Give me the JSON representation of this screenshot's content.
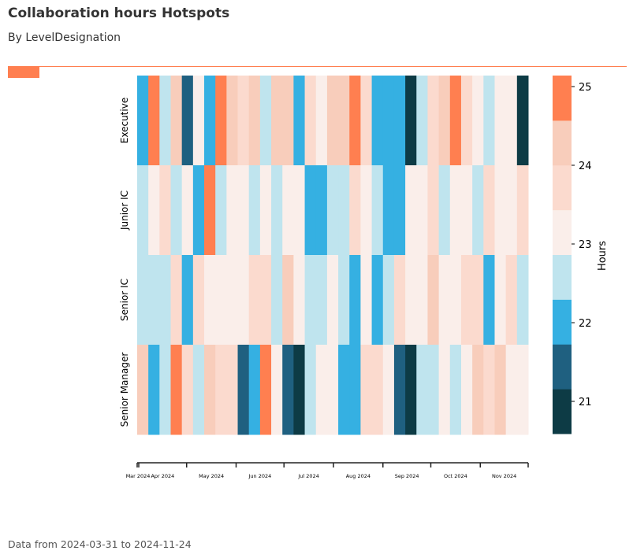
{
  "title": "Collaboration hours Hotspots",
  "subtitle": "By LevelDesignation",
  "footer": "Data from 2024-03-31 to 2024-11-24",
  "colors": {
    "accent": "#ff7f50",
    "palette": [
      "#0d3b45",
      "#1f6080",
      "#35b0e2",
      "#bfe4ee",
      "#faeeea",
      "#fbdace",
      "#f8cdbb",
      "#ff7f50"
    ]
  },
  "chart_data": {
    "type": "heatmap",
    "title": "Collaboration hours Hotspots",
    "subtitle": "By LevelDesignation",
    "rows": [
      "Executive",
      "Junior IC",
      "Senior IC",
      "Senior Manager"
    ],
    "x_start": "2024-03-31",
    "x_end": "2024-11-24",
    "x_step": "week",
    "x_tick_labels": [
      "Mar 2024",
      "Apr 2024",
      "May 2024",
      "Jun 2024",
      "Jul 2024",
      "Aug 2024",
      "Sep 2024",
      "Oct 2024",
      "Nov 2024"
    ],
    "values": [
      [
        22.0,
        24.85,
        22.6,
        24.3,
        21.45,
        23.15,
        22.0,
        24.85,
        24.3,
        23.7,
        24.3,
        22.6,
        24.3,
        24.3,
        22.0,
        23.7,
        23.15,
        24.3,
        24.3,
        24.85,
        23.7,
        22.0,
        22.0,
        22.0,
        20.87,
        22.6,
        23.7,
        24.3,
        24.85,
        23.7,
        23.15,
        22.6,
        23.15,
        23.15,
        20.87
      ],
      [
        22.6,
        23.15,
        23.7,
        22.6,
        23.15,
        22.0,
        24.85,
        22.6,
        23.15,
        23.15,
        22.6,
        23.15,
        22.6,
        23.15,
        23.15,
        22.0,
        22.0,
        22.6,
        22.6,
        23.7,
        23.15,
        22.6,
        22.0,
        22.0,
        23.15,
        23.15,
        23.7,
        22.6,
        23.15,
        23.15,
        22.6,
        23.7,
        23.15,
        23.15,
        23.7
      ],
      [
        22.6,
        22.6,
        22.6,
        23.7,
        22.0,
        23.7,
        23.15,
        23.15,
        23.15,
        23.15,
        23.7,
        23.7,
        22.6,
        24.3,
        23.15,
        22.6,
        22.6,
        23.15,
        22.6,
        22.0,
        23.15,
        22.0,
        22.6,
        23.7,
        23.15,
        23.15,
        24.3,
        23.15,
        23.15,
        23.7,
        23.7,
        22.0,
        23.15,
        23.7,
        22.6
      ],
      [
        24.3,
        22.0,
        22.6,
        24.85,
        23.7,
        22.6,
        24.3,
        23.7,
        23.7,
        21.45,
        22.0,
        24.85,
        23.15,
        21.45,
        20.87,
        22.6,
        23.15,
        23.15,
        22.0,
        22.0,
        23.7,
        23.7,
        23.15,
        21.45,
        20.87,
        22.6,
        22.6,
        23.15,
        22.6,
        23.15,
        24.3,
        23.7,
        24.3,
        23.15,
        23.15
      ]
    ],
    "colorbar": {
      "label": "Hours",
      "ticks": [
        21,
        22,
        23,
        24,
        25
      ],
      "range": [
        20.59,
        25.14
      ],
      "bins": 8
    }
  }
}
